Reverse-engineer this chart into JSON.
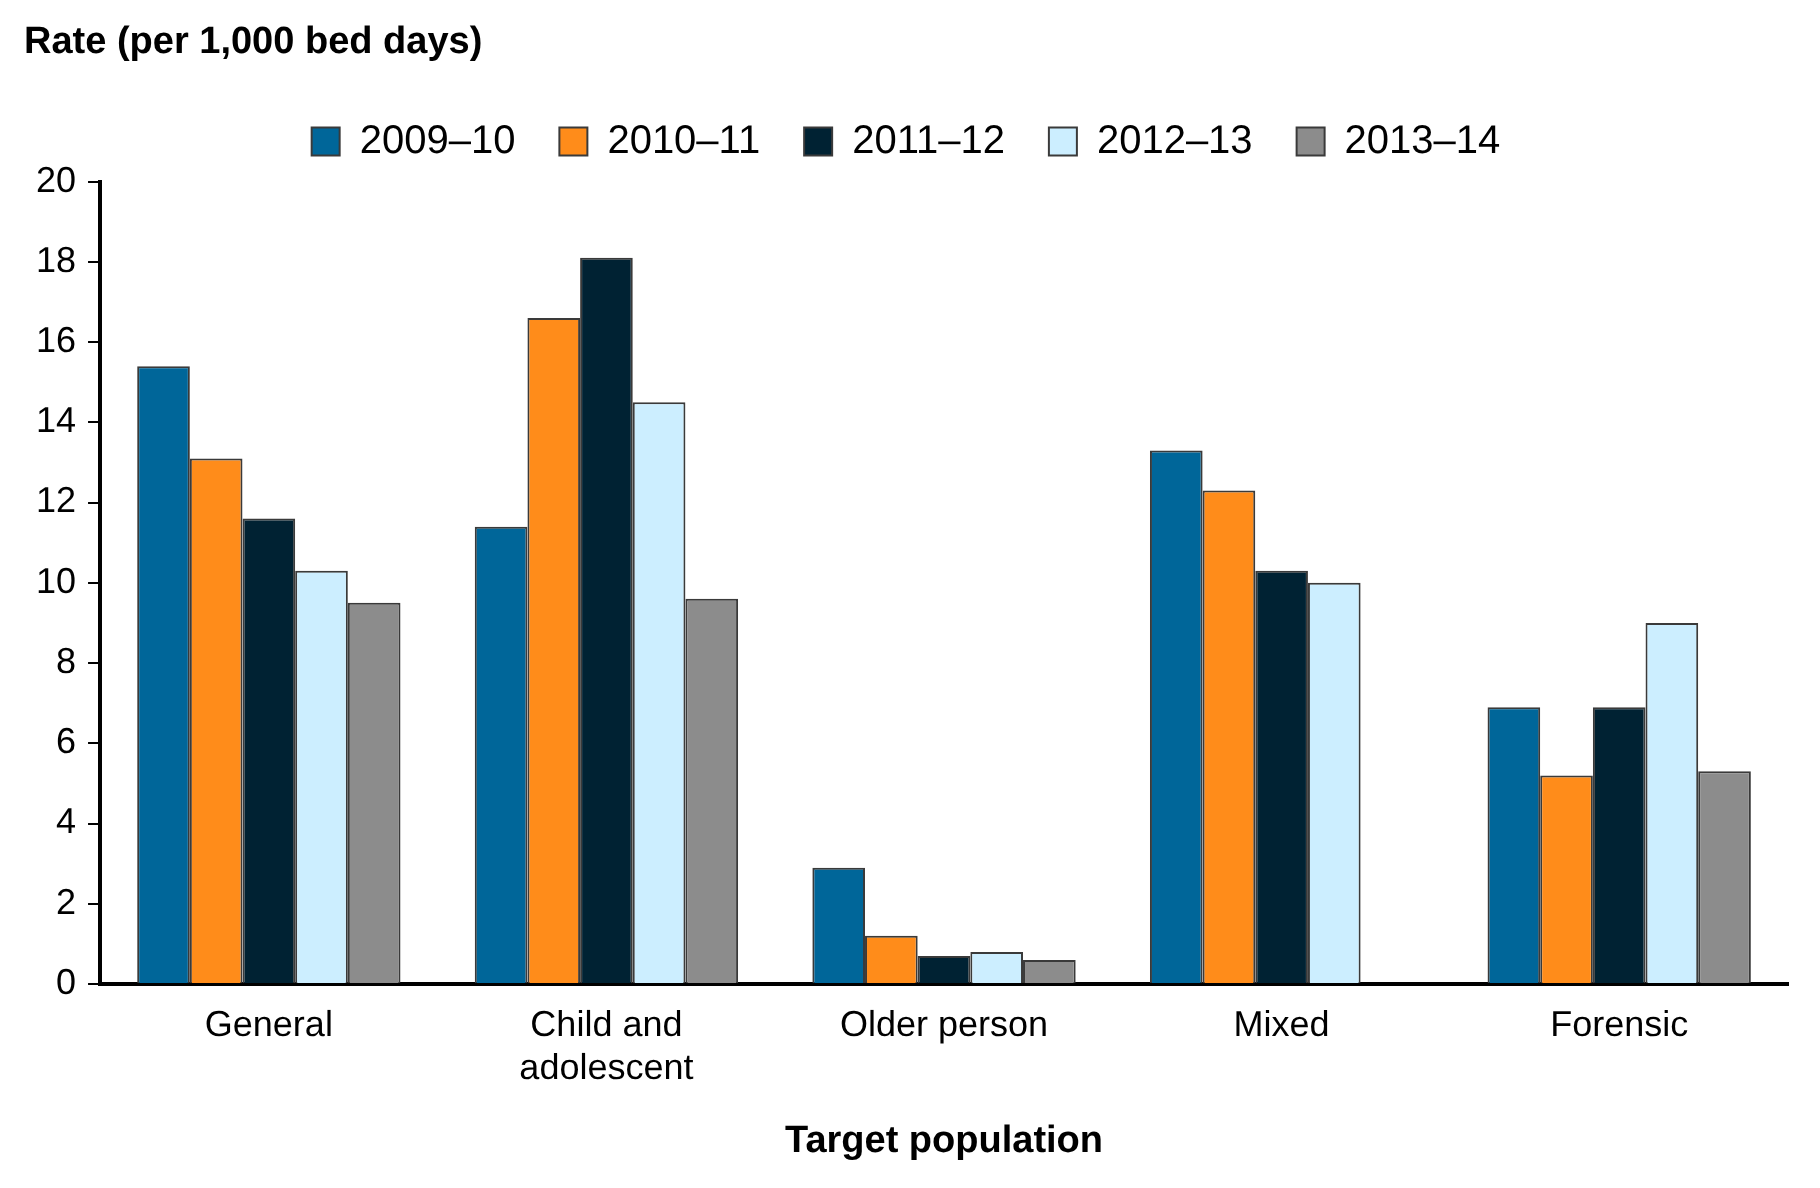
{
  "chart_data": {
    "type": "bar",
    "ylabel": "Rate (per 1,000 bed days)",
    "xlabel": "Target population",
    "categories": [
      "General",
      "Child and adolescent",
      "Older person",
      "Mixed",
      "Forensic"
    ],
    "series": [
      {
        "name": "2009–10",
        "color": "#006699",
        "values": [
          15.4,
          11.4,
          2.9,
          13.3,
          6.9
        ]
      },
      {
        "name": "2010–11",
        "color": "#ff8c1a",
        "values": [
          13.1,
          16.6,
          1.2,
          12.3,
          5.2
        ]
      },
      {
        "name": "2011–12",
        "color": "#002233",
        "values": [
          11.6,
          18.1,
          0.7,
          10.3,
          6.9
        ]
      },
      {
        "name": "2012–13",
        "color": "#cceeff",
        "values": [
          10.3,
          14.5,
          0.8,
          10.0,
          9.0
        ]
      },
      {
        "name": "2013–14",
        "color": "#8c8c8c",
        "values": [
          9.5,
          9.6,
          0.6,
          null,
          5.3
        ]
      }
    ],
    "ylim": [
      0,
      20
    ],
    "yticks": [
      0,
      2,
      4,
      6,
      8,
      10,
      12,
      14,
      16,
      18,
      20
    ],
    "grid": false,
    "legend": "top"
  }
}
